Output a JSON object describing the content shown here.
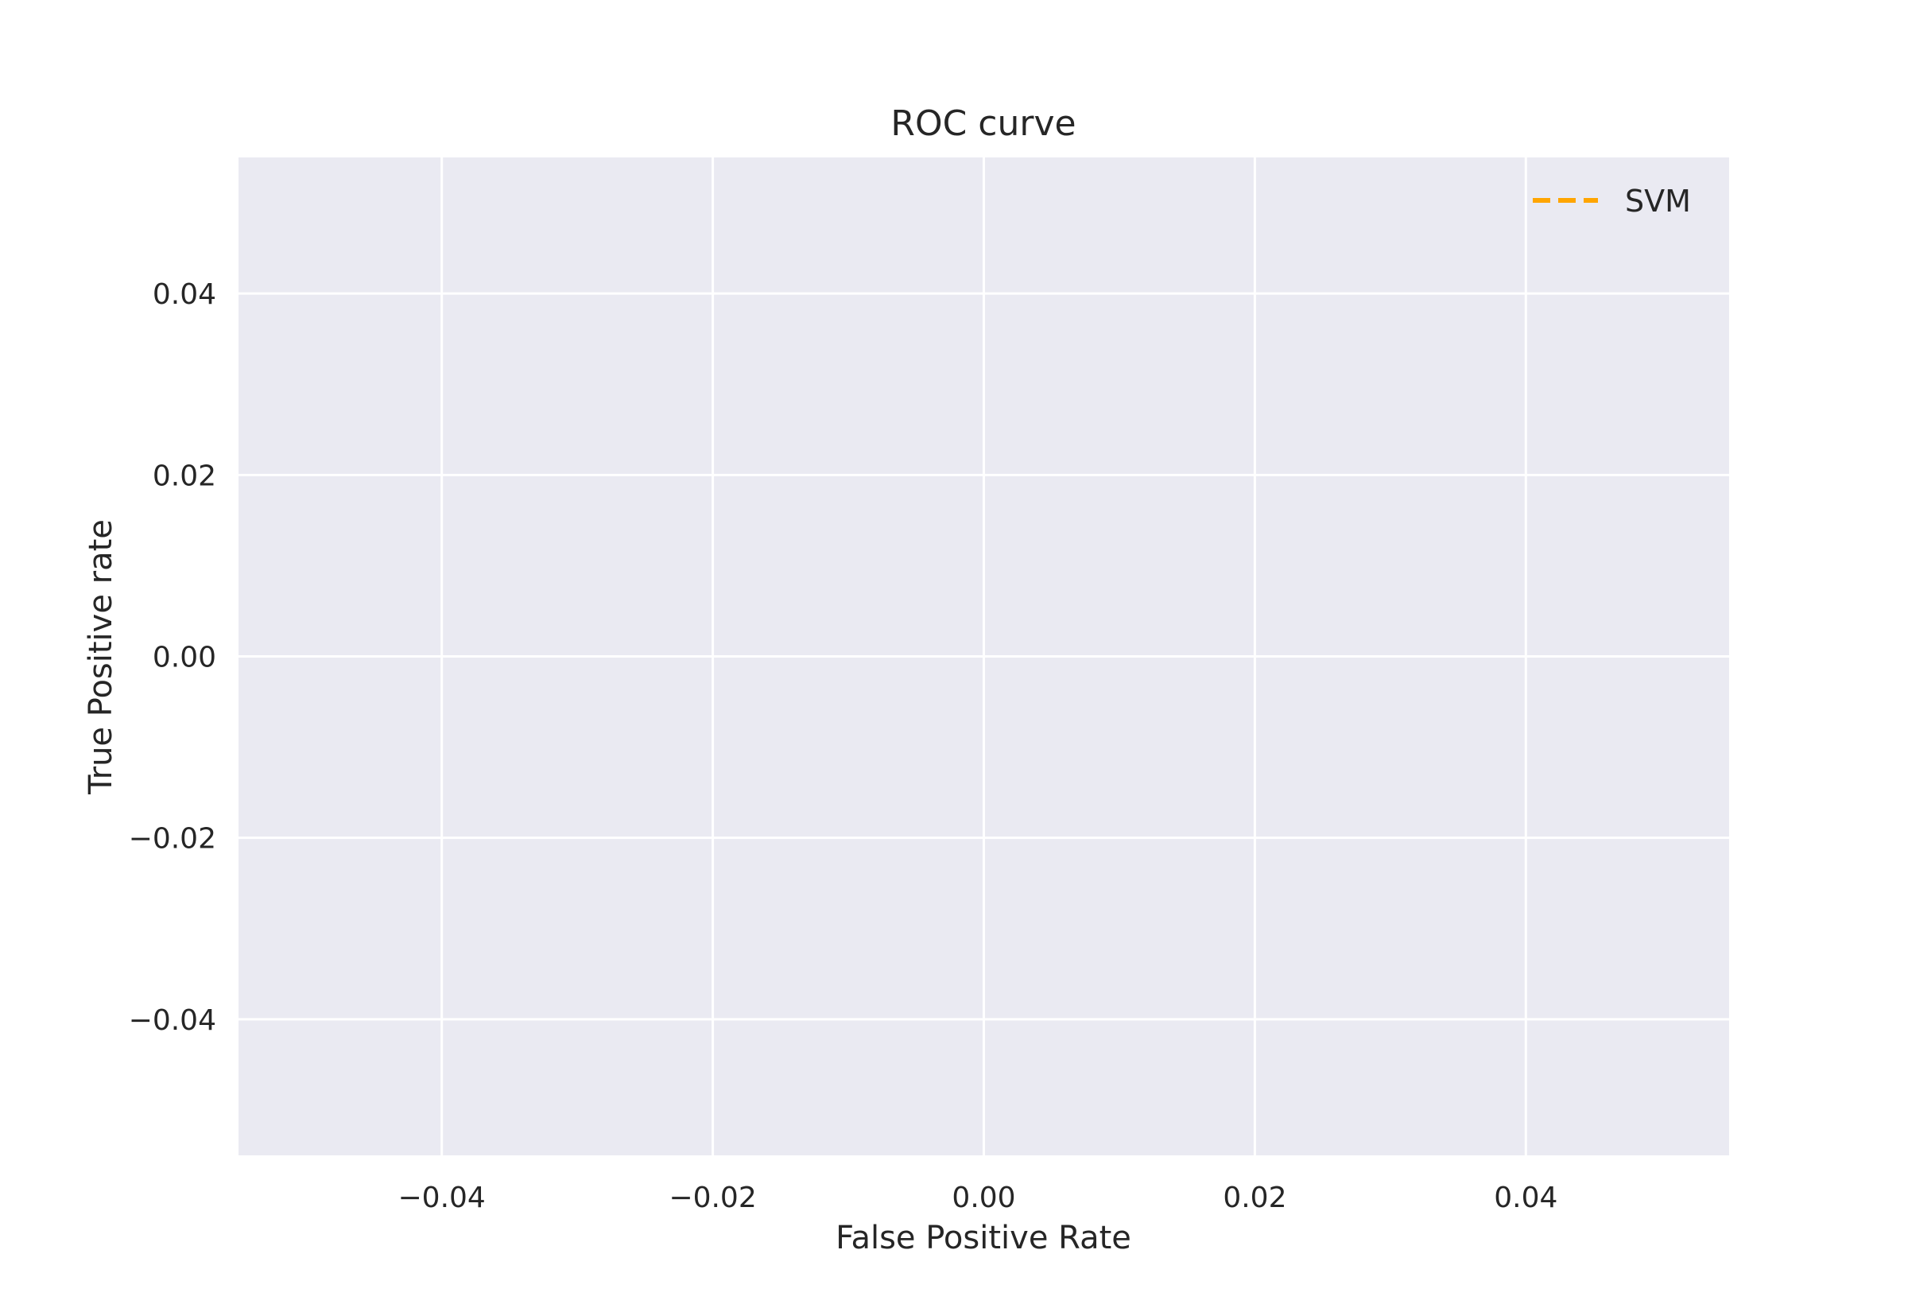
{
  "chart_data": {
    "type": "line",
    "title": "ROC curve",
    "xlabel": "False Positive Rate",
    "ylabel": "True Positive rate",
    "xlim": [
      -0.055,
      0.055
    ],
    "ylim": [
      -0.055,
      0.055
    ],
    "xticks": [
      -0.04,
      -0.02,
      0.0,
      0.02,
      0.04
    ],
    "yticks": [
      -0.04,
      -0.02,
      0.0,
      0.02,
      0.04
    ],
    "xtick_labels": [
      "−0.04",
      "−0.02",
      "0.00",
      "0.02",
      "0.04"
    ],
    "ytick_labels": [
      "−0.04",
      "−0.02",
      "0.00",
      "0.02",
      "0.04"
    ],
    "grid": true,
    "legend_position": "top-right",
    "series": [
      {
        "name": "SVM",
        "x": [],
        "y": [],
        "color": "#FFA500",
        "linestyle": "dashed"
      }
    ]
  },
  "style": {
    "plot_background": "#EAEAF2",
    "grid_color": "#FFFFFF",
    "text_color": "#262626"
  }
}
